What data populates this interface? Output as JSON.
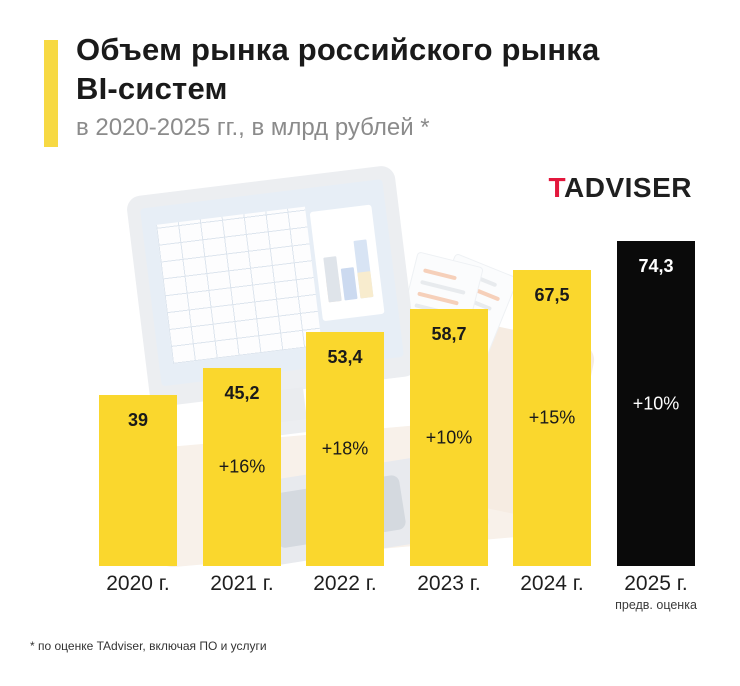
{
  "header": {
    "title_line1": "Объем рынка российского рынка",
    "title_line2": "BI-систем",
    "subtitle": "в 2020-2025 гг., в млрд рублей *"
  },
  "logo": {
    "prefix": "T",
    "rest": "ADVISER"
  },
  "chart_data": {
    "type": "bar",
    "title": "Объем рынка российского рынка BI-систем в 2020-2025 гг., в млрд рублей",
    "unit": "млрд рублей",
    "categories": [
      "2020 г.",
      "2021 г.",
      "2022 г.",
      "2023 г.",
      "2024 г.",
      "2025 г."
    ],
    "values": [
      39,
      45.2,
      53.4,
      58.7,
      67.5,
      74.3
    ],
    "value_labels": [
      "39",
      "45,2",
      "53,4",
      "58,7",
      "67,5",
      "74,3"
    ],
    "growth_labels": [
      "",
      "+16%",
      "+18%",
      "+10%",
      "+15%",
      "+10%"
    ],
    "bar_colors": [
      "#FAD72D",
      "#FAD72D",
      "#FAD72D",
      "#FAD72D",
      "#FAD72D",
      "#0a0a0a"
    ],
    "label_colors": [
      "#1a1a1a",
      "#1a1a1a",
      "#1a1a1a",
      "#1a1a1a",
      "#1a1a1a",
      "#ffffff"
    ],
    "last_bar_note": "предв. оценка",
    "legend": "none",
    "grid": false,
    "axes_visible": false
  },
  "colors": {
    "accent_yellow": "#F7D943",
    "bar_yellow": "#FAD72D",
    "bar_black": "#0a0a0a",
    "logo_red": "#E3173C"
  },
  "footnote": "* по оценке TAdviser, включая ПО и услуги"
}
